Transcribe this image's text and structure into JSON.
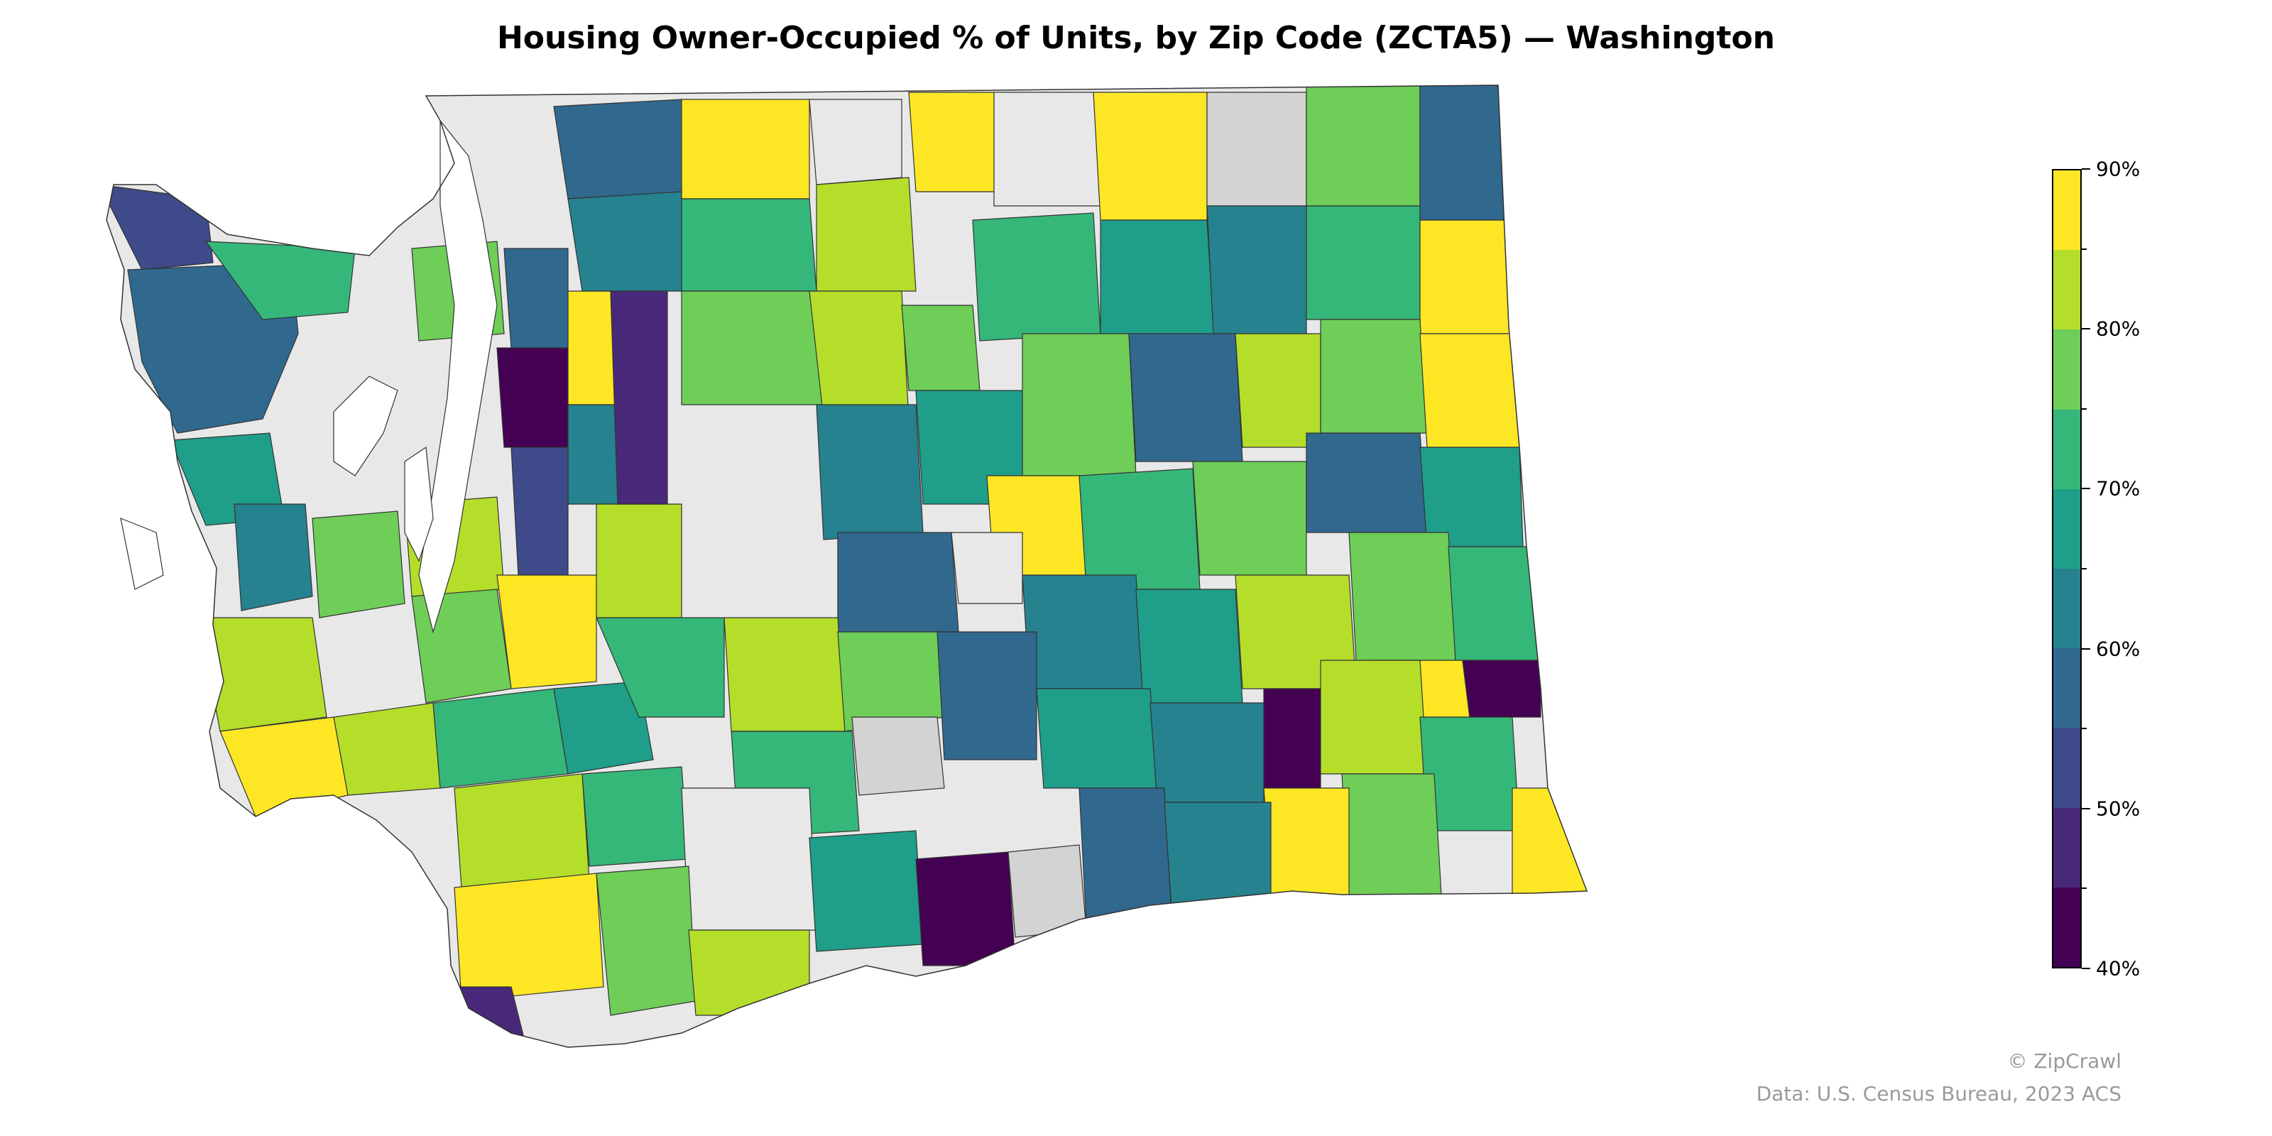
{
  "title": "Housing Owner-Occupied % of Units, by Zip Code (ZCTA5) — Washington",
  "legend": {
    "min": 40,
    "max": 90,
    "tick_labels": [
      "40%",
      "50%",
      "60%",
      "70%",
      "80%",
      "90%"
    ],
    "bins": [
      {
        "from": 40,
        "to": 45,
        "color": "#440154"
      },
      {
        "from": 45,
        "to": 50,
        "color": "#482878"
      },
      {
        "from": 50,
        "to": 55,
        "color": "#3e4a89"
      },
      {
        "from": 55,
        "to": 60,
        "color": "#31688e"
      },
      {
        "from": 60,
        "to": 65,
        "color": "#26828e"
      },
      {
        "from": 65,
        "to": 70,
        "color": "#1f9e89"
      },
      {
        "from": 70,
        "to": 75,
        "color": "#35b779"
      },
      {
        "from": 75,
        "to": 80,
        "color": "#6ece58"
      },
      {
        "from": 80,
        "to": 85,
        "color": "#b5de2b"
      },
      {
        "from": 85,
        "to": 90,
        "color": "#fde725"
      }
    ]
  },
  "colors": {
    "no_data": "#e8e8e8",
    "no_data_alt": "#d3d3d3",
    "water": "#ffffff",
    "border": "#333333"
  },
  "watermark": "© ZipCrawl",
  "source": "Data: U.S. Census Bureau, 2023 ACS"
}
